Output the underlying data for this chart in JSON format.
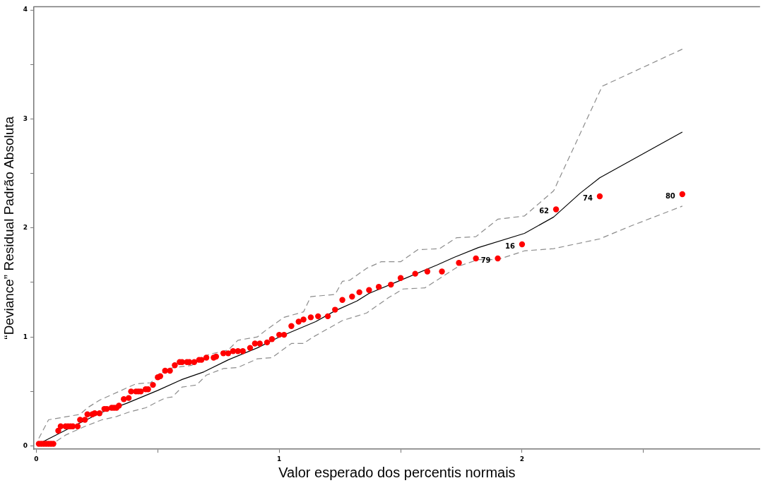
{
  "chart_data": {
    "type": "scatter",
    "xlabel": "Valor esperado dos percentis normais",
    "ylabel": "“Deviance” Residual Padrão Absoluta",
    "xlim": [
      -0.01,
      2.98
    ],
    "ylim": [
      -0.03,
      4.03
    ],
    "xticks": [
      0,
      {
        "value": 0.5,
        "label": null
      },
      1,
      {
        "value": 1.5,
        "label": null
      },
      2,
      {
        "value": 2.5,
        "label": null
      }
    ],
    "yticks": [
      0,
      {
        "value": 0.5,
        "label": null
      },
      1,
      {
        "value": 1.5,
        "label": null
      },
      2,
      {
        "value": 2.5,
        "label": null
      },
      3,
      {
        "value": 3.5,
        "label": null
      },
      4
    ],
    "grid": false,
    "legend": false,
    "series": [
      {
        "type": "line",
        "color": "#000000",
        "line_style": "solid",
        "marker": "none",
        "x": [
          0.01,
          0.16,
          0.27,
          0.37,
          0.5,
          0.6,
          0.69,
          0.79,
          0.91,
          1.0,
          1.15,
          1.23,
          1.32,
          1.37,
          1.5,
          1.65,
          1.72,
          1.82,
          2.01,
          2.13,
          2.24,
          2.32,
          2.66
        ],
        "values": [
          0.02,
          0.19,
          0.31,
          0.39,
          0.51,
          0.61,
          0.68,
          0.79,
          0.9,
          1.0,
          1.14,
          1.24,
          1.33,
          1.4,
          1.52,
          1.66,
          1.73,
          1.82,
          1.95,
          2.1,
          2.32,
          2.46,
          2.88
        ]
      },
      {
        "type": "line",
        "color": "#8c8c8c",
        "line_style": "dashed",
        "marker": "none",
        "x": [
          0.01,
          0.05,
          0.18,
          0.21,
          0.26,
          0.34,
          0.41,
          0.47,
          0.54,
          0.64,
          0.71,
          0.79,
          0.83,
          0.91,
          0.95,
          1.02,
          1.1,
          1.13,
          1.23,
          1.26,
          1.29,
          1.36,
          1.42,
          1.5,
          1.57,
          1.66,
          1.73,
          1.81,
          1.9,
          2.01,
          2.13,
          2.33,
          2.66
        ],
        "values": [
          0.07,
          0.24,
          0.29,
          0.35,
          0.42,
          0.5,
          0.57,
          0.58,
          0.71,
          0.74,
          0.84,
          0.88,
          0.97,
          1.0,
          1.07,
          1.18,
          1.23,
          1.37,
          1.39,
          1.51,
          1.52,
          1.63,
          1.69,
          1.69,
          1.8,
          1.81,
          1.91,
          1.92,
          2.08,
          2.11,
          2.34,
          3.3,
          3.64
        ]
      },
      {
        "type": "line",
        "color": "#8c8c8c",
        "line_style": "dashed",
        "marker": "none",
        "x": [
          0.01,
          0.08,
          0.12,
          0.2,
          0.27,
          0.33,
          0.38,
          0.45,
          0.53,
          0.56,
          0.6,
          0.66,
          0.7,
          0.77,
          0.83,
          0.91,
          0.97,
          1.05,
          1.1,
          1.14,
          1.26,
          1.36,
          1.45,
          1.51,
          1.6,
          1.74,
          1.82,
          1.9,
          2.01,
          2.13,
          2.32,
          2.45,
          2.66
        ],
        "values": [
          0.0,
          0.04,
          0.1,
          0.18,
          0.24,
          0.27,
          0.31,
          0.35,
          0.44,
          0.45,
          0.54,
          0.56,
          0.65,
          0.71,
          0.72,
          0.8,
          0.81,
          0.94,
          0.94,
          1.0,
          1.15,
          1.22,
          1.36,
          1.44,
          1.45,
          1.65,
          1.71,
          1.71,
          1.79,
          1.81,
          1.9,
          2.02,
          2.2
        ]
      },
      {
        "type": "scatter",
        "color": "#ff0000",
        "marker": "circle",
        "x": [
          0.01,
          0.02,
          0.03,
          0.04,
          0.05,
          0.06,
          0.07,
          0.09,
          0.1,
          0.12,
          0.13,
          0.14,
          0.15,
          0.17,
          0.18,
          0.2,
          0.21,
          0.23,
          0.24,
          0.26,
          0.28,
          0.29,
          0.31,
          0.32,
          0.33,
          0.34,
          0.36,
          0.38,
          0.39,
          0.41,
          0.42,
          0.43,
          0.45,
          0.46,
          0.48,
          0.5,
          0.51,
          0.53,
          0.55,
          0.57,
          0.59,
          0.6,
          0.62,
          0.63,
          0.65,
          0.67,
          0.68,
          0.7,
          0.73,
          0.74,
          0.77,
          0.79,
          0.81,
          0.83,
          0.85,
          0.88,
          0.9,
          0.92,
          0.95,
          0.97,
          1.0,
          1.02,
          1.05,
          1.08,
          1.1,
          1.13,
          1.16,
          1.2,
          1.23,
          1.26,
          1.3,
          1.33,
          1.37,
          1.41,
          1.46,
          1.5,
          1.56,
          1.61,
          1.67,
          1.74,
          1.81,
          1.9,
          2.0,
          2.14,
          2.32,
          2.66
        ],
        "values": [
          0.02,
          0.02,
          0.02,
          0.02,
          0.02,
          0.02,
          0.02,
          0.14,
          0.18,
          0.18,
          0.18,
          0.18,
          0.18,
          0.18,
          0.24,
          0.24,
          0.29,
          0.29,
          0.3,
          0.3,
          0.34,
          0.34,
          0.35,
          0.35,
          0.35,
          0.37,
          0.43,
          0.44,
          0.5,
          0.5,
          0.5,
          0.5,
          0.52,
          0.52,
          0.56,
          0.63,
          0.64,
          0.69,
          0.69,
          0.74,
          0.77,
          0.77,
          0.77,
          0.77,
          0.77,
          0.79,
          0.79,
          0.81,
          0.81,
          0.82,
          0.85,
          0.85,
          0.87,
          0.87,
          0.87,
          0.9,
          0.94,
          0.94,
          0.95,
          0.98,
          1.02,
          1.02,
          1.1,
          1.14,
          1.16,
          1.18,
          1.19,
          1.19,
          1.25,
          1.34,
          1.37,
          1.41,
          1.43,
          1.46,
          1.48,
          1.54,
          1.58,
          1.6,
          1.6,
          1.68,
          1.72,
          1.72,
          1.85,
          2.17,
          2.29,
          2.31
        ]
      }
    ],
    "annotations": [
      {
        "text": "79",
        "x": 1.9,
        "y": 1.72
      },
      {
        "text": "16",
        "x": 2.0,
        "y": 1.85
      },
      {
        "text": "62",
        "x": 2.14,
        "y": 2.17
      },
      {
        "text": "74",
        "x": 2.32,
        "y": 2.29
      },
      {
        "text": "80",
        "x": 2.66,
        "y": 2.31
      }
    ]
  }
}
